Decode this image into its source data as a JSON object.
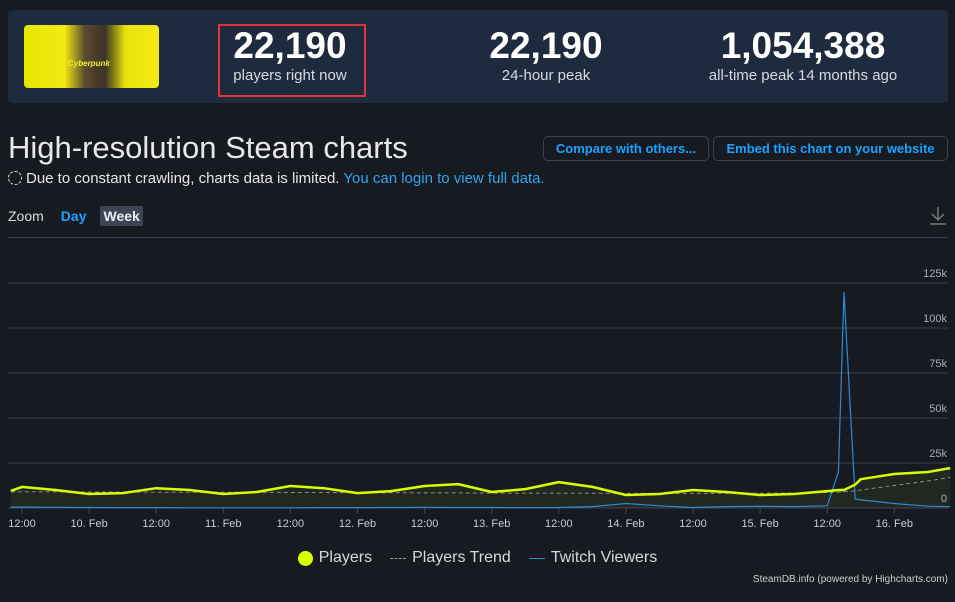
{
  "header": {
    "game_image_alt": "Cyberpunk",
    "stats": [
      {
        "value": "22,190",
        "label": "players right now"
      },
      {
        "value": "22,190",
        "label": "24-hour peak"
      },
      {
        "value": "1,054,388",
        "label": "all-time peak 14 months ago"
      }
    ]
  },
  "title": "High-resolution Steam charts",
  "notice": {
    "text": "Due to constant crawling, charts data is limited.",
    "link": "You can login to view full data."
  },
  "buttons": {
    "compare": "Compare with others...",
    "embed": "Embed this chart on your website"
  },
  "zoom": {
    "label": "Zoom",
    "options": [
      "Day",
      "Week"
    ],
    "selected": "Week"
  },
  "colors": {
    "players": "#d8ff00",
    "trend": "#8a8a8a",
    "twitch": "#2a8bd6",
    "accent": "#1aa3ff",
    "highlight": "#e0333a"
  },
  "chart_data": {
    "type": "line",
    "x_ticks": [
      "12:00",
      "10. Feb",
      "12:00",
      "11. Feb",
      "12:00",
      "12. Feb",
      "12:00",
      "13. Feb",
      "12:00",
      "14. Feb",
      "12:00",
      "15. Feb",
      "12:00",
      "16. Feb"
    ],
    "y_ticks": [
      "0",
      "25k",
      "50k",
      "75k",
      "100k",
      "125k"
    ],
    "ylim": [
      0,
      137500
    ],
    "grid": true,
    "legend": "bottom",
    "x": [
      "02-09 10:00",
      "02-09 12:00",
      "02-09 18:00",
      "02-10 00:00",
      "02-10 06:00",
      "02-10 12:00",
      "02-10 18:00",
      "02-11 00:00",
      "02-11 06:00",
      "02-11 12:00",
      "02-11 18:00",
      "02-12 00:00",
      "02-12 06:00",
      "02-12 12:00",
      "02-12 18:00",
      "02-13 00:00",
      "02-13 06:00",
      "02-13 12:00",
      "02-13 18:00",
      "02-14 00:00",
      "02-14 06:00",
      "02-14 12:00",
      "02-14 18:00",
      "02-15 00:00",
      "02-15 06:00",
      "02-15 12:00",
      "02-15 14:00",
      "02-15 15:00",
      "02-15 17:00",
      "02-15 18:00",
      "02-16 00:00",
      "02-16 06:00",
      "02-16 10:00"
    ],
    "series": [
      {
        "name": "Players",
        "values": [
          9500,
          11700,
          10000,
          7800,
          8300,
          11000,
          10000,
          7800,
          8900,
          12200,
          11000,
          8300,
          9400,
          12200,
          13300,
          8900,
          10500,
          14400,
          11700,
          7200,
          7800,
          10000,
          8900,
          7200,
          7800,
          9400,
          10000,
          10000,
          13000,
          16000,
          18900,
          20000,
          22190
        ]
      },
      {
        "name": "Players Trend",
        "values": [
          9000,
          9000,
          9000,
          8900,
          8900,
          8800,
          8800,
          8700,
          8700,
          8600,
          8600,
          8500,
          8500,
          8400,
          8400,
          8300,
          8300,
          8200,
          8200,
          8100,
          8100,
          8100,
          8100,
          8200,
          8300,
          8600,
          8800,
          9000,
          9500,
          10000,
          12500,
          15000,
          17000
        ]
      },
      {
        "name": "Twitch Viewers",
        "values": [
          500,
          500,
          400,
          300,
          200,
          200,
          100,
          100,
          100,
          100,
          200,
          200,
          300,
          400,
          300,
          300,
          200,
          300,
          800,
          2500,
          1200,
          300,
          800,
          1000,
          800,
          1200,
          20000,
          120000,
          5000,
          4500,
          2500,
          1000,
          700
        ]
      }
    ]
  },
  "credit": "SteamDB.info (powered by Highcharts.com)"
}
